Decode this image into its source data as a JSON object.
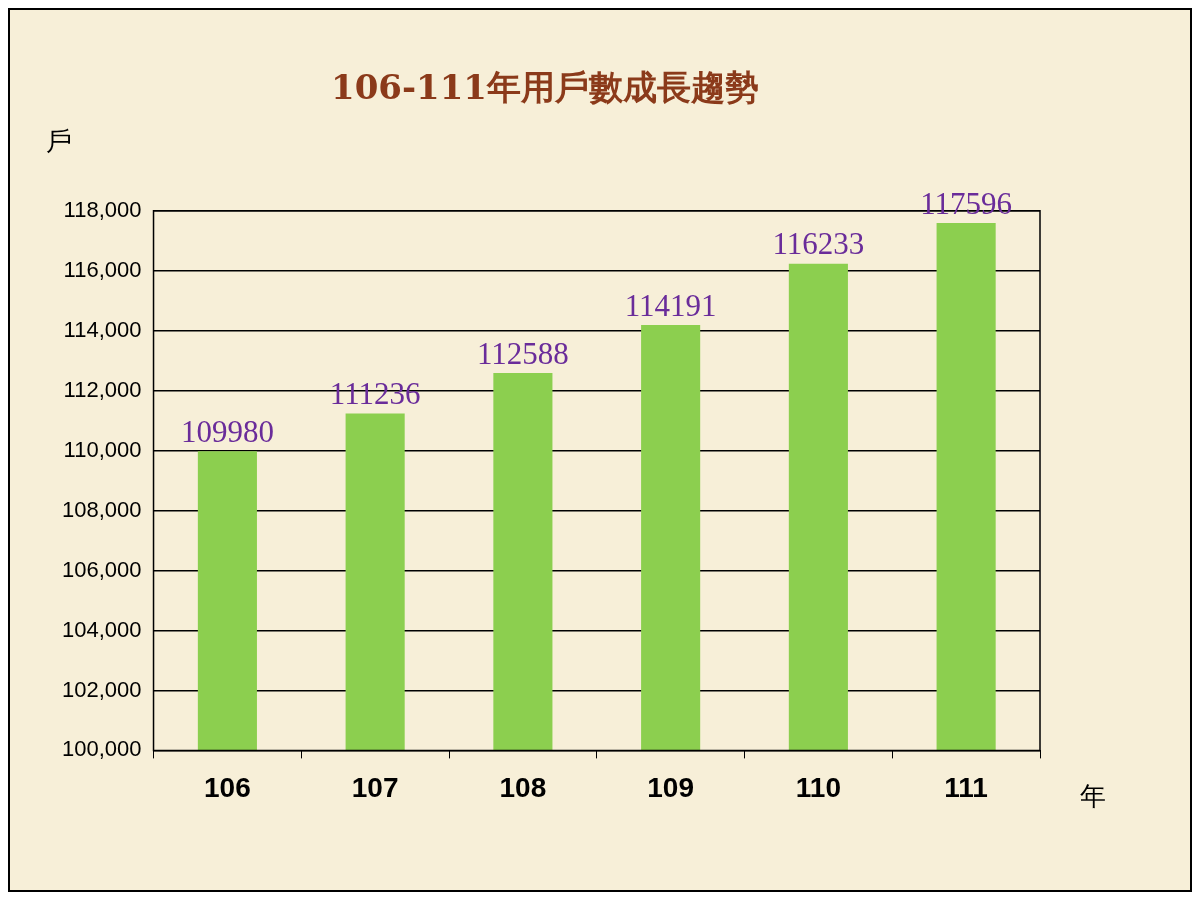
{
  "chart_data": {
    "type": "bar",
    "title": "106-111年用戶數成長趨勢",
    "ylabel": "戶",
    "xlabel": "年",
    "categories": [
      "106",
      "107",
      "108",
      "109",
      "110",
      "111"
    ],
    "series": [
      {
        "color": "#8ccf4f",
        "values": [
          109980,
          111236,
          112588,
          114191,
          116233,
          117596
        ]
      }
    ],
    "ylim": [
      100000,
      118000
    ],
    "yticks": [
      {
        "value": 100000,
        "label": "100,000"
      },
      {
        "value": 102000,
        "label": "102,000"
      },
      {
        "value": 104000,
        "label": "104,000"
      },
      {
        "value": 106000,
        "label": "106,000"
      },
      {
        "value": 108000,
        "label": "108,000"
      },
      {
        "value": 110000,
        "label": "110,000"
      },
      {
        "value": 112000,
        "label": "112,000"
      },
      {
        "value": 114000,
        "label": "114,000"
      },
      {
        "value": 116000,
        "label": "116,000"
      },
      {
        "value": 118000,
        "label": "118,000"
      }
    ],
    "grid": "y",
    "legend": false,
    "data_labels": true
  }
}
